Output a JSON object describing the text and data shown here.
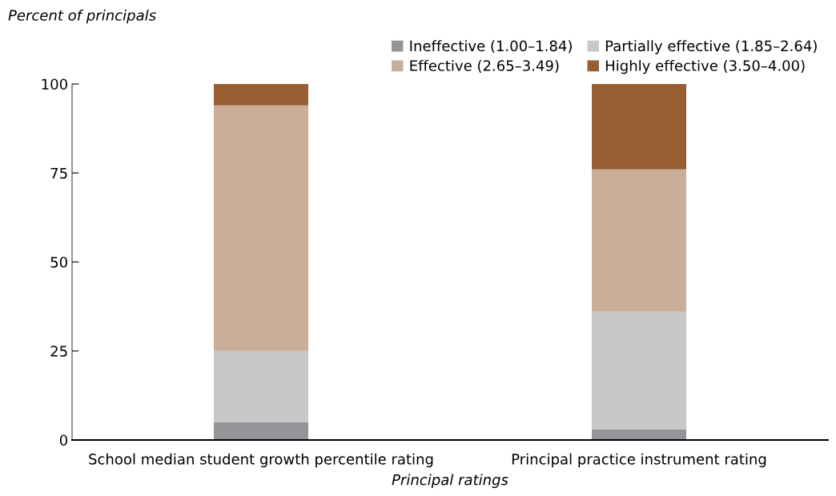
{
  "chart_data": {
    "type": "bar",
    "stacked": true,
    "xlabel": "Principal ratings",
    "ylabel": "Percent of principals",
    "categories": [
      "School median student growth percentile rating",
      "Principal practice instrument rating"
    ],
    "series": [
      {
        "name": "Ineffective (1.00–1.84)",
        "color": "#939598",
        "values": [
          5,
          3
        ]
      },
      {
        "name": "Partially effective (1.85–2.64)",
        "color": "#c7c8ca",
        "values": [
          20,
          33
        ]
      },
      {
        "name": "Effective (2.65–3.49)",
        "color": "#cbae99",
        "values": [
          69,
          40
        ]
      },
      {
        "name": "Highly effective (3.50–4.00)",
        "color": "#985e33",
        "values": [
          6,
          24
        ]
      }
    ],
    "ylim": [
      0,
      100
    ],
    "yticks": [
      0,
      25,
      50,
      75,
      100
    ],
    "grid": false,
    "legend": "top right"
  }
}
